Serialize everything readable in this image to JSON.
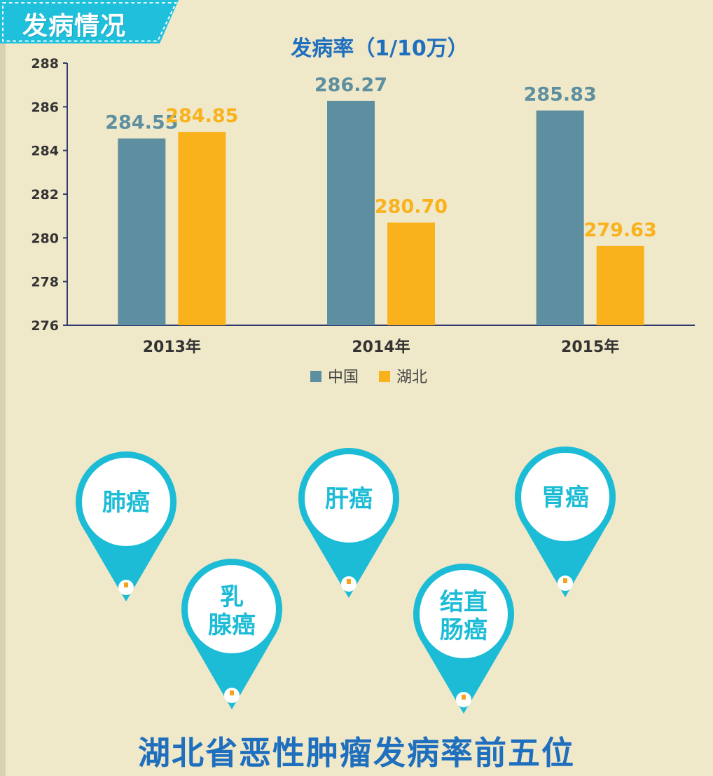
{
  "section_title": "发病情况",
  "chart_data": {
    "type": "bar",
    "title": "发病率（1/10万）",
    "categories": [
      "2013年",
      "2014年",
      "2015年"
    ],
    "series": [
      {
        "name": "中国",
        "values": [
          284.55,
          286.27,
          285.83
        ],
        "labels": [
          "284.55",
          "286.27",
          "285.83"
        ]
      },
      {
        "name": "湖北",
        "values": [
          284.85,
          280.7,
          279.63
        ],
        "labels": [
          "284.85",
          "280.70",
          "279.63"
        ]
      }
    ],
    "ylim": [
      276,
      288
    ],
    "yticks": [
      276,
      278,
      280,
      282,
      284,
      286,
      288
    ],
    "legend_position": "bottom-center",
    "grid": false,
    "xlabel": "",
    "ylabel": ""
  },
  "colors": {
    "china": "#5e8fa0",
    "hubei": "#f9b21c",
    "teal": "#1dbcd6",
    "title_blue": "#1f6fbf",
    "axis": "#2f3a6e"
  },
  "pins": [
    {
      "lines": [
        "肺癌"
      ]
    },
    {
      "lines": [
        "乳",
        "腺癌"
      ]
    },
    {
      "lines": [
        "肝癌"
      ]
    },
    {
      "lines": [
        "结直",
        "肠癌"
      ]
    },
    {
      "lines": [
        "胃癌"
      ]
    }
  ],
  "bottom_title": "湖北省恶性肿瘤发病率前五位"
}
